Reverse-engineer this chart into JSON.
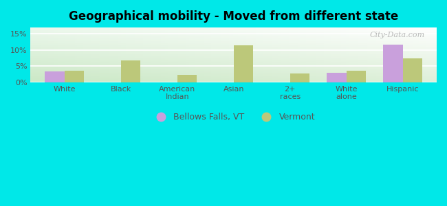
{
  "title": "Geographical mobility - Moved from different state",
  "categories": [
    "White",
    "Black",
    "American\nIndian",
    "Asian",
    "2+\nraces",
    "White\nalone",
    "Hispanic"
  ],
  "bellows_falls": [
    3.3,
    0.0,
    0.0,
    0.0,
    0.0,
    2.9,
    11.6
  ],
  "vermont": [
    3.6,
    6.7,
    2.3,
    11.5,
    2.8,
    3.6,
    7.5
  ],
  "bar_color_bf": "#c9a0dc",
  "bar_color_vt": "#bcc87a",
  "background_color": "#00e8e8",
  "plot_bg_color": "#e8f5e0",
  "ylim": [
    0,
    17
  ],
  "yticks": [
    0,
    5,
    10,
    15
  ],
  "ytick_labels": [
    "0%",
    "5%",
    "10%",
    "15%"
  ],
  "legend_label_bf": "Bellows Falls, VT",
  "legend_label_vt": "Vermont",
  "bar_width": 0.35,
  "watermark": "City-Data.com"
}
